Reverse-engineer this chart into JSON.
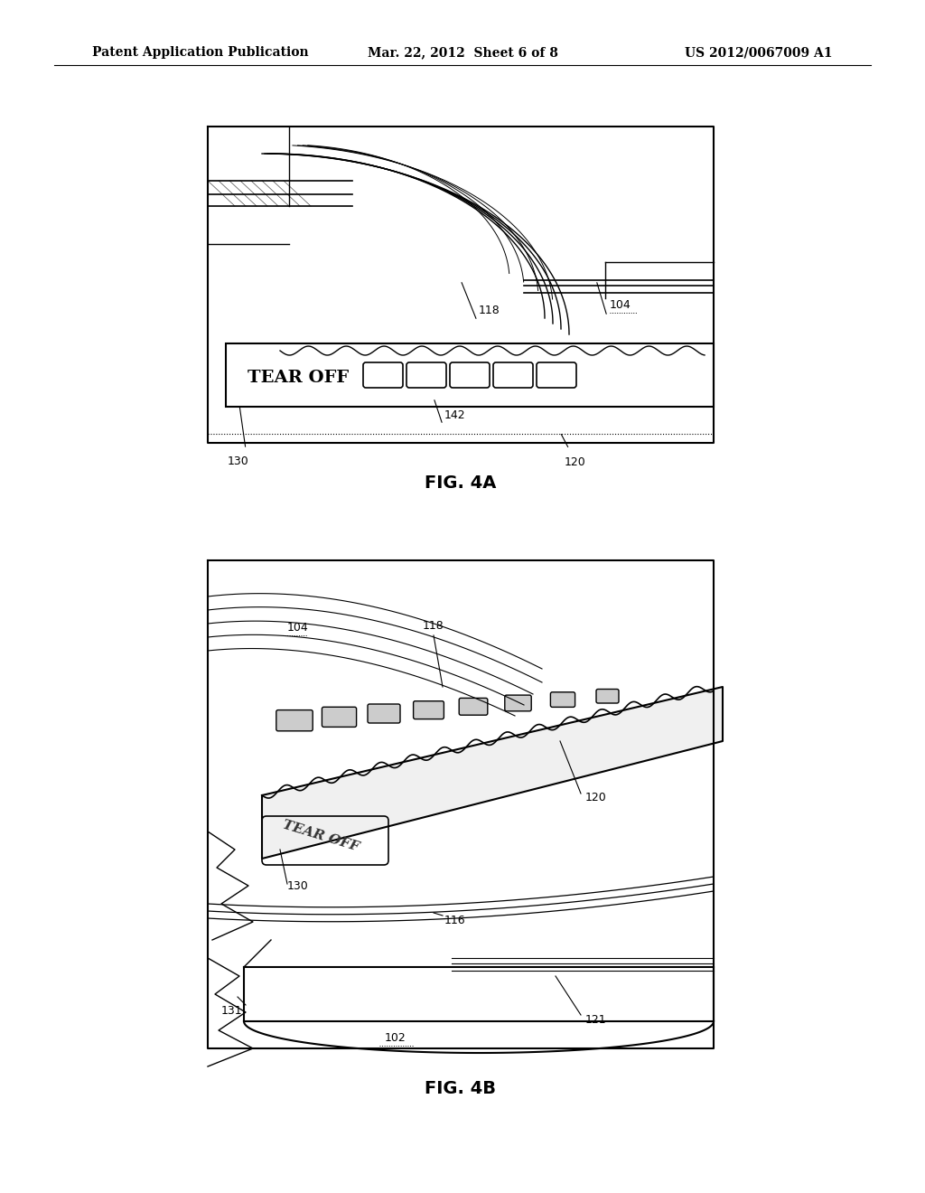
{
  "bg_color": "#ffffff",
  "header_left": "Patent Application Publication",
  "header_center": "Mar. 22, 2012  Sheet 6 of 8",
  "header_right": "US 2012/0067009 A1",
  "fig4a_caption": "FIG. 4A",
  "fig4b_caption": "FIG. 4B",
  "label_color": "#000000",
  "line_color": "#000000",
  "header_fontsize": 10,
  "caption_fontsize": 13,
  "label_fontsize": 9
}
